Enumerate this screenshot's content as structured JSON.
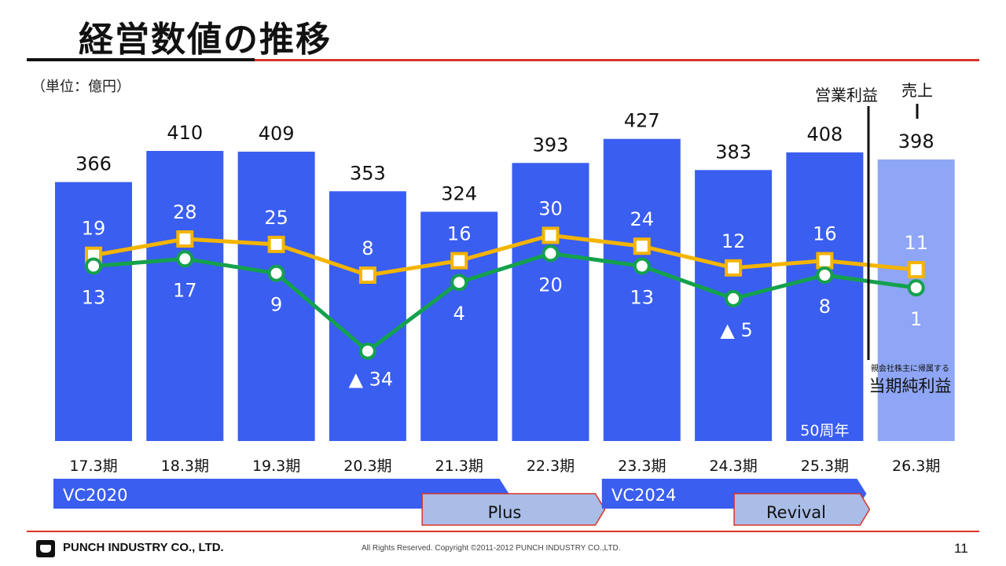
{
  "slide": {
    "title": "経営数値の推移",
    "unit": "（単位：億円）",
    "page_number": "11"
  },
  "footer": {
    "company": "PUNCH INDUSTRY CO., LTD.",
    "copyright": "All Rights Reserved. Copyright ©2011-2012  PUNCH  INDUSTRY  CO.,LTD."
  },
  "colors": {
    "bar": "#3a5ef0",
    "bar_forecast": "#8ea6f5",
    "operating_line": "#f4b400",
    "net_line": "#14a14d",
    "plan_bar": "#3a5ef0",
    "plan_sub": "#a9bde6",
    "accent_red": "#d9342b"
  },
  "chart_data": {
    "type": "bar",
    "categories": [
      "17.3期",
      "18.3期",
      "19.3期",
      "20.3期",
      "21.3期",
      "22.3期",
      "23.3期",
      "24.3期",
      "25.3期",
      "26.3期"
    ],
    "series": [
      {
        "name": "売上",
        "type": "bar",
        "values": [
          366,
          410,
          409,
          353,
          324,
          393,
          427,
          383,
          408,
          398
        ],
        "labels": [
          "366",
          "410",
          "409",
          "353",
          "324",
          "393",
          "427",
          "383",
          "408",
          "398"
        ]
      },
      {
        "name": "営業利益",
        "type": "line",
        "values": [
          19,
          28,
          25,
          8,
          16,
          30,
          24,
          12,
          16,
          11
        ],
        "labels": [
          "19",
          "28",
          "25",
          "8",
          "16",
          "30",
          "24",
          "12",
          "16",
          "11"
        ]
      },
      {
        "name": "当期純利益",
        "type": "line",
        "values": [
          13,
          17,
          9,
          -34,
          4,
          20,
          13,
          -5,
          8,
          1
        ],
        "labels": [
          "13",
          "17",
          "9",
          "▲ 34",
          "4",
          "20",
          "13",
          "▲ 5",
          "8",
          "1"
        ]
      }
    ],
    "forecast_category": "26.3期",
    "annotations": {
      "fiftieth_anniversary": "50周年",
      "legend_sales": "売上",
      "legend_operating": "営業利益",
      "legend_net_small": "親会社株主に帰属する",
      "legend_net": "当期純利益"
    },
    "plans": [
      {
        "label": "VC2020",
        "from": "17.3期",
        "to": "21.3期"
      },
      {
        "label": "Plus",
        "from": "21.3期",
        "to": "22.3期"
      },
      {
        "label": "VC2024",
        "from": "23.3期",
        "to": "25.3期"
      },
      {
        "label": "Revival",
        "from": "24.3期",
        "to": "25.3期"
      }
    ]
  }
}
